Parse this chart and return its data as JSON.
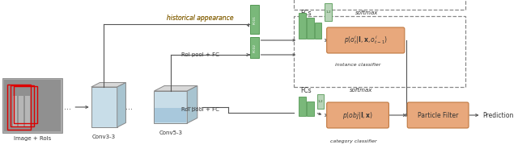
{
  "bg_color": "#ffffff",
  "labels": {
    "image_rois": "Image + RoIs",
    "conv3": "Conv3-3",
    "conv5": "Conv5-3",
    "hist_appearance": "historical appearance",
    "roi_pool_fc": "RoI pool + FC",
    "roi_pool_fc2": "RoI pool + FC",
    "fcs_top": "FCs",
    "fcs_bot": "FCs",
    "softmax_top": "softmax",
    "softmax_bot": "softmax",
    "instance_cls": "instance classifier",
    "category_cls": "category classifier",
    "particle_filter": "Particle Filter",
    "prediction": "Prediction"
  },
  "colors": {
    "bg": "#ffffff",
    "box_green": "#8db87a",
    "box_orange": "#e8a87c",
    "orange_edge": "#c07840",
    "fc_green": "#7ab87a",
    "fc_light": "#b8d4b8",
    "fc_edge": "#559955",
    "cube_front": "#c8dde8",
    "cube_top": "#d8d8d8",
    "cube_side": "#a8c4d0",
    "cube_blue_fill": "#a8c8dc",
    "arrow": "#555555",
    "dashed": "#888888",
    "text_brown": "#8b6914",
    "text_dark": "#333333",
    "red": "#dd0000",
    "img_gray": "#aaaaaa",
    "img_dark": "#888888"
  }
}
